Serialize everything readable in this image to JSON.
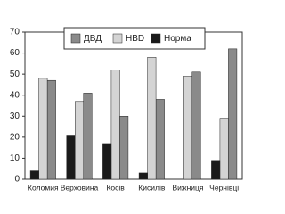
{
  "chart_data": {
    "type": "bar",
    "categories": [
      "Коломия",
      "Верховина",
      "Косів",
      "Кисилів",
      "Вижниця",
      "Чернівці"
    ],
    "series": [
      {
        "name": "ДВД",
        "color": "#8a8a8a",
        "values": [
          47,
          41,
          30,
          38,
          51,
          62
        ]
      },
      {
        "name": "HBD",
        "color": "#d4d4d4",
        "values": [
          48,
          37,
          52,
          58,
          49,
          29
        ]
      },
      {
        "name": "Норма",
        "color": "#1a1a1a",
        "values": [
          4,
          21,
          17,
          3,
          0,
          9
        ]
      }
    ],
    "ylim": [
      0,
      70
    ],
    "yticks": [
      0,
      10,
      20,
      30,
      40,
      50,
      60,
      70
    ],
    "legend": "top"
  }
}
